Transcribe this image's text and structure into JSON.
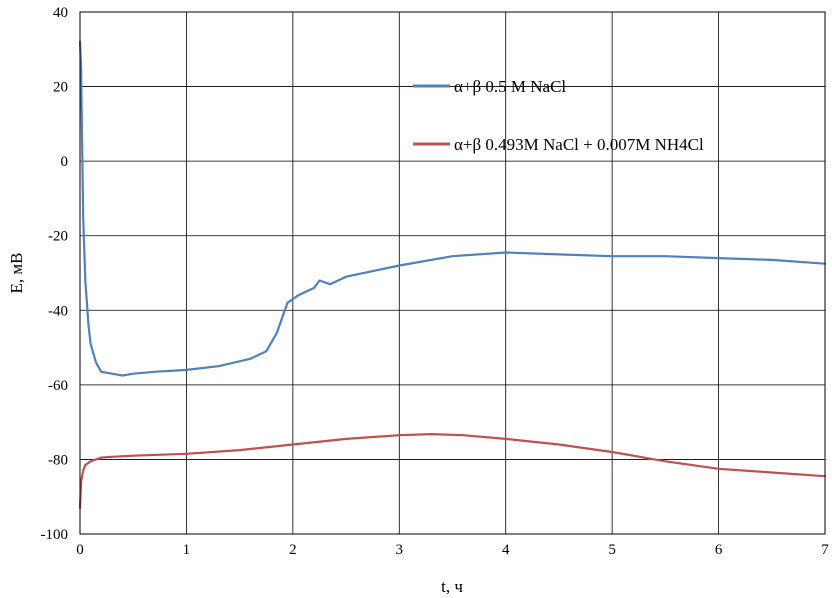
{
  "chart_data": {
    "type": "line",
    "title": "",
    "xlabel": "t, ч",
    "ylabel": "E, мВ",
    "xlim": [
      0,
      7
    ],
    "ylim": [
      -100,
      40
    ],
    "x_ticks": [
      0,
      1,
      2,
      3,
      4,
      5,
      6,
      7
    ],
    "y_ticks": [
      -100,
      -80,
      -60,
      -40,
      -20,
      0,
      20,
      40
    ],
    "grid": true,
    "legend_position": "top-right",
    "series": [
      {
        "name": "α+β 0.5 M NaCl",
        "color": "#4f81bd",
        "x": [
          0,
          0.01,
          0.02,
          0.03,
          0.05,
          0.08,
          0.1,
          0.15,
          0.2,
          0.3,
          0.4,
          0.5,
          0.7,
          1.0,
          1.3,
          1.6,
          1.75,
          1.85,
          1.95,
          2.05,
          2.2,
          2.25,
          2.35,
          2.5,
          3.0,
          3.5,
          4.0,
          4.5,
          5.0,
          5.5,
          6.0,
          6.5,
          7.0
        ],
        "y": [
          32,
          25,
          5,
          -15,
          -32,
          -44,
          -49,
          -54,
          -56.5,
          -57,
          -57.5,
          -57,
          -56.5,
          -56,
          -55,
          -53,
          -51,
          -46,
          -38,
          -36,
          -34,
          -32,
          -33,
          -31,
          -28,
          -25.5,
          -24.5,
          -25,
          -25.5,
          -25.5,
          -26,
          -26.5,
          -27.5
        ]
      },
      {
        "name": "α+β 0.493M NaCl + 0.007M NH4Cl",
        "color": "#c0504d",
        "x": [
          0,
          0.01,
          0.03,
          0.05,
          0.1,
          0.2,
          0.3,
          0.5,
          1.0,
          1.5,
          2.0,
          2.5,
          3.0,
          3.3,
          3.6,
          4.0,
          4.5,
          5.0,
          5.5,
          6.0,
          6.5,
          7.0
        ],
        "y": [
          -93,
          -86,
          -83,
          -81.5,
          -80.5,
          -79.5,
          -79.3,
          -79,
          -78.5,
          -77.5,
          -76,
          -74.5,
          -73.5,
          -73.2,
          -73.5,
          -74.5,
          -76,
          -78,
          -80.5,
          -82.5,
          -83.5,
          -84.5
        ]
      }
    ]
  }
}
